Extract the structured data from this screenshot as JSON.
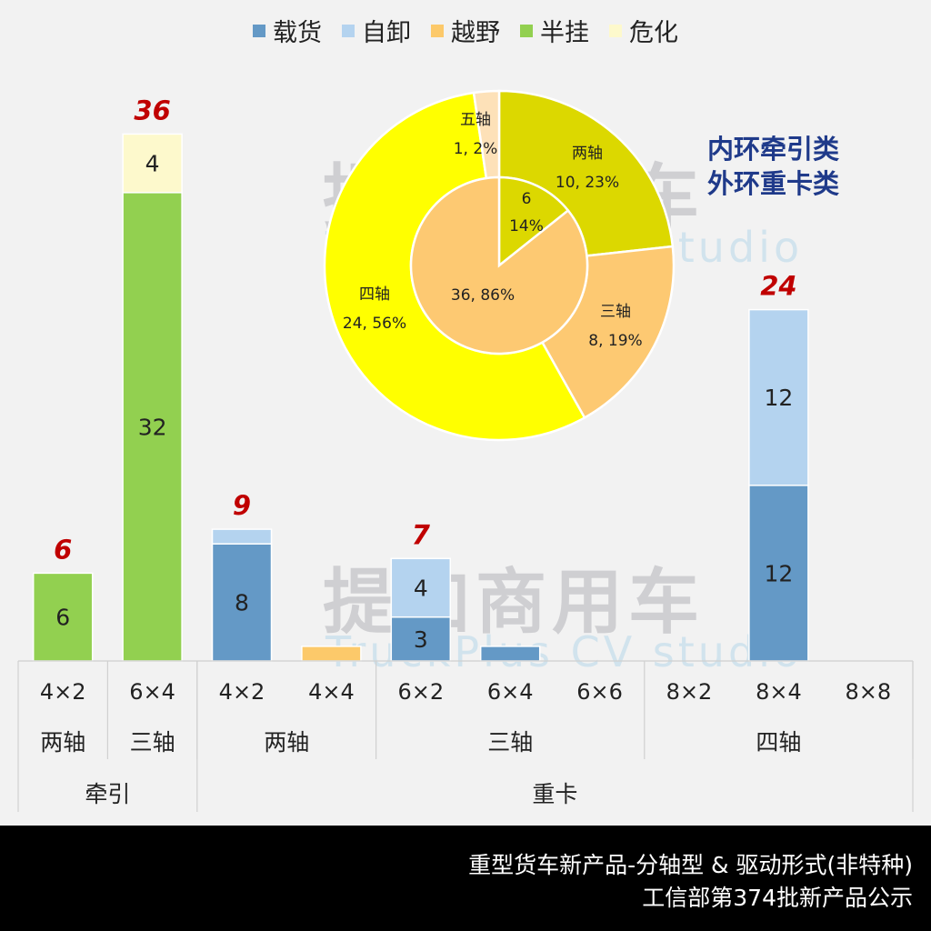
{
  "legend": [
    {
      "name": "载货",
      "color": "#6499c6"
    },
    {
      "name": "自卸",
      "color": "#b4d3ef"
    },
    {
      "name": "越野",
      "color": "#fcc96a"
    },
    {
      "name": "半挂",
      "color": "#92d050"
    },
    {
      "name": "危化",
      "color": "#fdf9cc"
    }
  ],
  "note": {
    "line1": "内环牵引类",
    "line2": "外环重卡类"
  },
  "watermark": {
    "cn": "提加商用车",
    "en": "TruckPlus CV studio"
  },
  "footer": {
    "title": "重型货车新产品-分轴型 & 驱动形式(非特种)",
    "subtitle": "工信部第374批新产品公示"
  },
  "chart_data": [
    {
      "type": "bar",
      "stacked": true,
      "categories": [
        "4×2",
        "6×4",
        "4×2",
        "4×4",
        "6×2",
        "6×4",
        "6×6",
        "8×2",
        "8×4",
        "8×8"
      ],
      "axle_groups": [
        {
          "label": "两轴",
          "span": 1
        },
        {
          "label": "三轴",
          "span": 1
        },
        {
          "label": "两轴",
          "span": 2
        },
        {
          "label": "三轴",
          "span": 3
        },
        {
          "label": "四轴",
          "span": 3
        }
      ],
      "type_groups": [
        {
          "label": "牵引",
          "span": 2
        },
        {
          "label": "重卡",
          "span": 8
        }
      ],
      "series": [
        {
          "name": "载货",
          "values": [
            0,
            0,
            8,
            0,
            3,
            1,
            0,
            0,
            12,
            0
          ]
        },
        {
          "name": "自卸",
          "values": [
            0,
            0,
            1,
            0,
            4,
            0,
            0,
            0,
            12,
            0
          ]
        },
        {
          "name": "越野",
          "values": [
            0,
            0,
            0,
            1,
            0,
            0,
            0,
            0,
            0,
            0
          ]
        },
        {
          "name": "半挂",
          "values": [
            6,
            32,
            0,
            0,
            0,
            0,
            0,
            0,
            0,
            0
          ]
        },
        {
          "name": "危化",
          "values": [
            0,
            4,
            0,
            0,
            0,
            0,
            0,
            0,
            0,
            0
          ]
        }
      ],
      "totals": [
        "6",
        "36",
        "9",
        "",
        "7",
        "",
        "",
        "",
        "24",
        ""
      ],
      "ylim": [
        0,
        36
      ]
    },
    {
      "type": "pie",
      "style": "double-donut",
      "inner": {
        "name": "牵引类",
        "slices": [
          {
            "label": "",
            "value": 6,
            "text": "6",
            "pct": "14%",
            "color": "#dcd800"
          },
          {
            "label": "",
            "value": 36,
            "text": "36, 86%",
            "pct": "",
            "color": "#fdc972"
          }
        ]
      },
      "outer": {
        "name": "重卡类",
        "slices": [
          {
            "label": "两轴",
            "value": 10,
            "text": "10, 23%",
            "color": "#dcd800"
          },
          {
            "label": "三轴",
            "value": 8,
            "text": "8, 19%",
            "color": "#fdc972"
          },
          {
            "label": "四轴",
            "value": 24,
            "text": "24, 56%",
            "color": "#ffff00"
          },
          {
            "label": "五轴",
            "value": 1,
            "text": "1, 2%",
            "color": "#fde1b8"
          }
        ]
      }
    }
  ]
}
